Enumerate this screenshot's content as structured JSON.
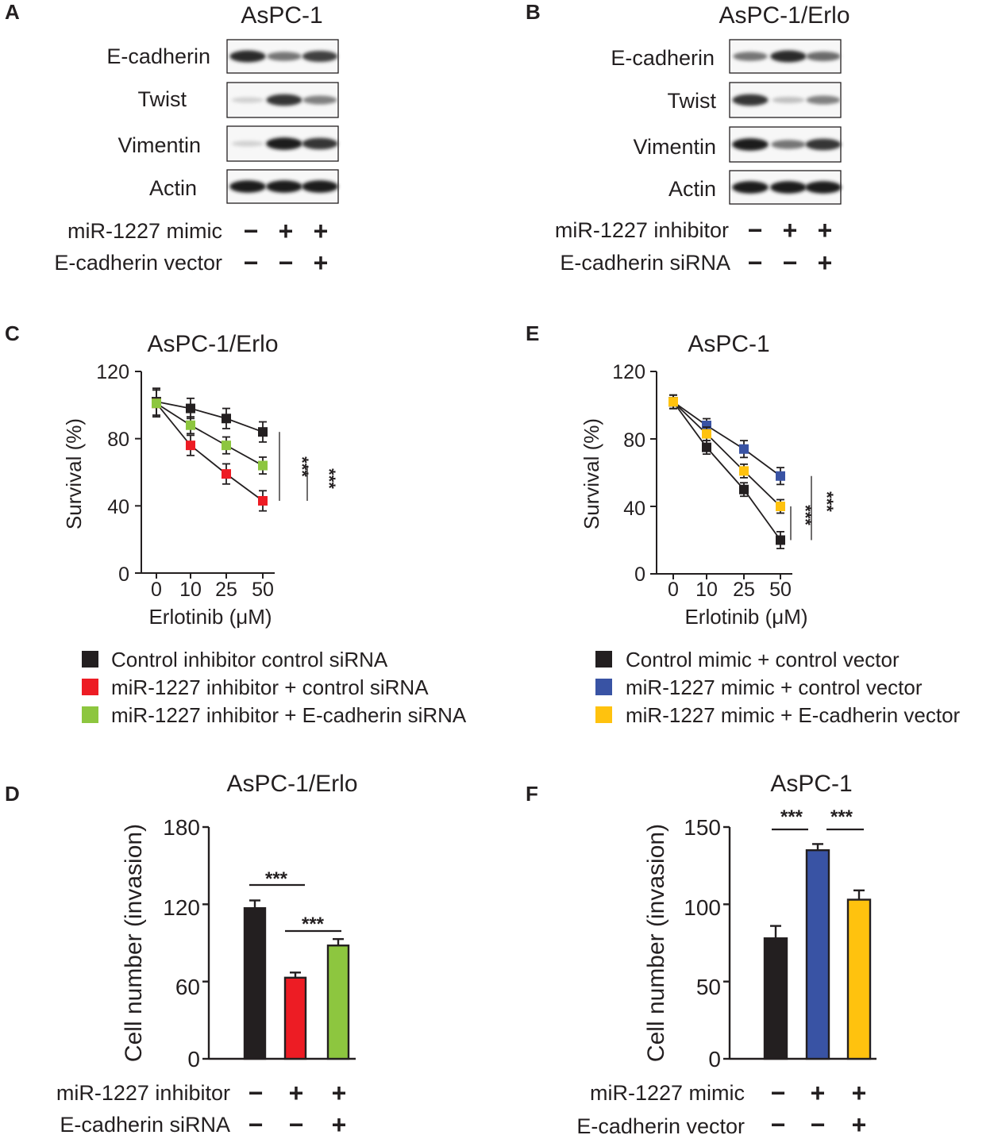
{
  "panels": {
    "A": {
      "label": "A",
      "title": "AsPC-1",
      "bands": [
        "E-cadherin",
        "Twist",
        "Vimentin",
        "Actin"
      ],
      "band_intensity": [
        [
          0.9,
          0.55,
          0.8
        ],
        [
          0.12,
          0.85,
          0.5
        ],
        [
          0.12,
          0.95,
          0.85
        ],
        [
          0.95,
          0.95,
          0.95
        ]
      ],
      "treatments": [
        {
          "label": "miR-1227 mimic",
          "signs": [
            "−",
            "+",
            "+"
          ]
        },
        {
          "label": "E-cadherin vector",
          "signs": [
            "−",
            "−",
            "+"
          ]
        }
      ]
    },
    "B": {
      "label": "B",
      "title": "AsPC-1/Erlo",
      "bands": [
        "E-cadherin",
        "Twist",
        "Vimentin",
        "Actin"
      ],
      "band_intensity": [
        [
          0.55,
          0.9,
          0.6
        ],
        [
          0.85,
          0.2,
          0.5
        ],
        [
          0.95,
          0.55,
          0.85
        ],
        [
          0.95,
          0.95,
          0.95
        ]
      ],
      "treatments": [
        {
          "label": "miR-1227 inhibitor",
          "signs": [
            "−",
            "+",
            "+"
          ]
        },
        {
          "label": "E-cadherin siRNA",
          "signs": [
            "−",
            "−",
            "+"
          ]
        }
      ]
    }
  },
  "chart_data": [
    {
      "panel": "C",
      "type": "line",
      "title": "AsPC-1/Erlo",
      "xlabel": "Erlotinib (μM)",
      "ylabel": "Survival (%)",
      "categories": [
        "0",
        "10",
        "25",
        "50"
      ],
      "yticks": [
        "0",
        "40",
        "80",
        "120"
      ],
      "ylim": [
        0,
        120
      ],
      "series": [
        {
          "name": "Control inhibitor control siRNA",
          "color": "#231f20",
          "values": [
            102,
            98,
            92,
            84
          ],
          "errors": [
            8,
            6,
            6,
            6
          ]
        },
        {
          "name": "miR-1227 inhibitor + control siRNA",
          "color": "#ed1c24",
          "values": [
            101,
            76,
            59,
            43
          ],
          "errors": [
            8,
            6,
            6,
            6
          ]
        },
        {
          "name": "miR-1227 inhibitor + E-cadherin siRNA",
          "color": "#8dc63f",
          "values": [
            101,
            88,
            76,
            64
          ],
          "errors": [
            8,
            5,
            5,
            5
          ]
        }
      ],
      "significance": [
        "***",
        "***"
      ]
    },
    {
      "panel": "E",
      "type": "line",
      "title": "AsPC-1",
      "xlabel": "Erlotinib (μM)",
      "ylabel": "Survival (%)",
      "categories": [
        "0",
        "10",
        "25",
        "50"
      ],
      "yticks": [
        "0",
        "40",
        "80",
        "120"
      ],
      "ylim": [
        0,
        120
      ],
      "series": [
        {
          "name": "Control mimic + control vector",
          "color": "#231f20",
          "values": [
            102,
            75,
            50,
            20
          ],
          "errors": [
            4,
            4,
            4,
            5
          ]
        },
        {
          "name": "miR-1227 mimic + control vector",
          "color": "#3953a4",
          "values": [
            102,
            88,
            74,
            58
          ],
          "errors": [
            4,
            4,
            5,
            5
          ]
        },
        {
          "name": "miR-1227 mimic + E-cadherin vector",
          "color": "#ffc20e",
          "values": [
            102,
            83,
            61,
            40
          ],
          "errors": [
            4,
            4,
            4,
            4
          ]
        }
      ],
      "significance": [
        "***",
        "***"
      ]
    },
    {
      "panel": "D",
      "type": "bar",
      "title": "AsPC-1/Erlo",
      "ylabel": "Cell number (invasion)",
      "yticks": [
        "0",
        "60",
        "120",
        "180"
      ],
      "ylim": [
        0,
        180
      ],
      "values": [
        117,
        63,
        88
      ],
      "errors": [
        6,
        4,
        5
      ],
      "colors": [
        "#231f20",
        "#ed1c24",
        "#8dc63f"
      ],
      "treatments": [
        {
          "label": "miR-1227 inhibitor",
          "signs": [
            "−",
            "+",
            "+"
          ]
        },
        {
          "label": "E-cadherin siRNA",
          "signs": [
            "−",
            "−",
            "+"
          ]
        }
      ],
      "significance": [
        "***",
        "***"
      ]
    },
    {
      "panel": "F",
      "type": "bar",
      "title": "AsPC-1",
      "ylabel": "Cell number (invasion)",
      "yticks": [
        "0",
        "50",
        "100",
        "150"
      ],
      "ylim": [
        0,
        150
      ],
      "values": [
        78,
        135,
        103
      ],
      "errors": [
        8,
        4,
        6
      ],
      "colors": [
        "#231f20",
        "#3953a4",
        "#ffc20e"
      ],
      "treatments": [
        {
          "label": "miR-1227 mimic",
          "signs": [
            "−",
            "+",
            "+"
          ]
        },
        {
          "label": "E-cadherin vector",
          "signs": [
            "−",
            "−",
            "+"
          ]
        }
      ],
      "significance": [
        "***",
        "***"
      ]
    }
  ]
}
